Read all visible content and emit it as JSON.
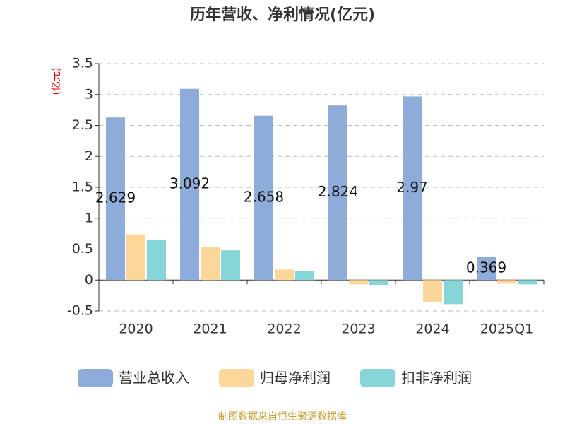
{
  "chart_data": {
    "type": "bar",
    "title": "历年营收、净利情况(亿元)",
    "y_unit_label": "(亿元)",
    "source": "制图数据来自恒生聚源数据库",
    "categories": [
      "2020",
      "2021",
      "2022",
      "2023",
      "2024",
      "2025Q1"
    ],
    "series": [
      {
        "name": "营业总收入",
        "color": "#8eacd9",
        "data_labels": true,
        "values": [
          2.629,
          3.092,
          2.658,
          2.824,
          2.97,
          0.369
        ]
      },
      {
        "name": "归母净利润",
        "color": "#fdd69a",
        "data_labels": false,
        "values": [
          0.74,
          0.53,
          0.17,
          -0.07,
          -0.35,
          -0.06
        ]
      },
      {
        "name": "扣非净利润",
        "color": "#86d5d8",
        "data_labels": false,
        "values": [
          0.65,
          0.48,
          0.15,
          -0.09,
          -0.39,
          -0.07
        ]
      }
    ],
    "ylim": [
      -0.5,
      3.5
    ],
    "yticks": [
      -0.5,
      0,
      0.5,
      1,
      1.5,
      2,
      2.5,
      3,
      3.5
    ],
    "grid": true
  }
}
